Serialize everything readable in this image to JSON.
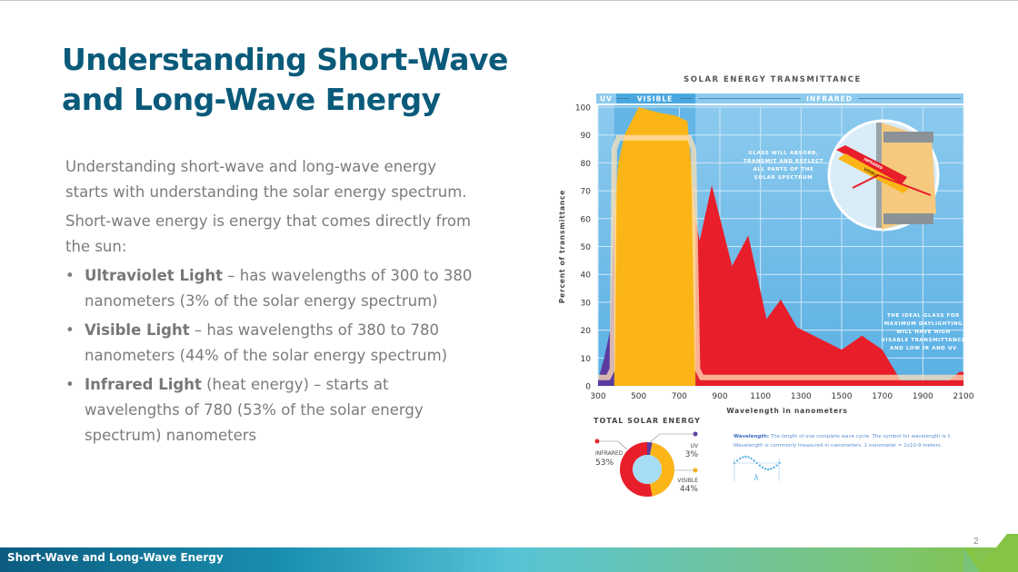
{
  "slide": {
    "title_lines": [
      "Understanding Short-Wave",
      "and Long-Wave Energy"
    ],
    "paragraphs": [
      "Understanding short-wave and long-wave energy starts with understanding the solar energy spectrum.",
      "Short-wave energy is energy that comes directly from the sun:"
    ],
    "bullets": [
      {
        "bold": "Ultraviolet Light",
        "text": " – has wavelengths of 300 to 380 nanometers (3% of the solar energy spectrum)"
      },
      {
        "bold": "Visible Light",
        "text": " – has wavelengths of 380 to 780 nanometers (44% of the solar energy spectrum)"
      },
      {
        "bold": "Infrared Light",
        "text": " (heat energy) – starts at wavelengths of 780 (53% of the solar energy spectrum) nanometers"
      }
    ],
    "bullet_glyph": "•",
    "footer_title": "Short-Wave and Long-Wave Energy",
    "slide_number": "2"
  },
  "chart_data": [
    {
      "type": "area",
      "title": "SOLAR ENERGY TRANSMITTANCE",
      "xlabel": "Wavelength in nanometers",
      "ylabel": "Percent of transmittance",
      "xlim": [
        300,
        2100
      ],
      "ylim": [
        0,
        100
      ],
      "xticks": [
        300,
        500,
        700,
        900,
        1100,
        1300,
        1500,
        1700,
        1900,
        2100
      ],
      "yticks": [
        0,
        10,
        20,
        30,
        40,
        50,
        60,
        70,
        80,
        90,
        100
      ],
      "grid": true,
      "bands": [
        {
          "label": "UV",
          "from": 300,
          "to": 380
        },
        {
          "label": "VISIBLE",
          "from": 380,
          "to": 780
        },
        {
          "label": "INFRARED",
          "from": 780,
          "to": 2100
        }
      ],
      "series": [
        {
          "name": "UV",
          "color": "#5b3aa0",
          "points": [
            [
              300,
              0
            ],
            [
              300,
              2
            ],
            [
              330,
              10
            ],
            [
              360,
              20
            ],
            [
              380,
              62
            ],
            [
              380,
              0
            ]
          ]
        },
        {
          "name": "Visible",
          "color": "#fbb516",
          "points": [
            [
              380,
              0
            ],
            [
              380,
              62
            ],
            [
              400,
              80
            ],
            [
              430,
              90
            ],
            [
              500,
              100
            ],
            [
              600,
              98
            ],
            [
              680,
              97
            ],
            [
              740,
              95
            ],
            [
              780,
              60
            ],
            [
              780,
              0
            ]
          ]
        },
        {
          "name": "Infrared",
          "color": "#e81e2a",
          "points": [
            [
              780,
              0
            ],
            [
              780,
              60
            ],
            [
              800,
              52
            ],
            [
              860,
              72
            ],
            [
              960,
              43
            ],
            [
              1040,
              54
            ],
            [
              1130,
              24
            ],
            [
              1200,
              31
            ],
            [
              1280,
              21
            ],
            [
              1500,
              13
            ],
            [
              1600,
              18
            ],
            [
              1700,
              13
            ],
            [
              1790,
              2
            ],
            [
              1900,
              2
            ],
            [
              2030,
              2
            ],
            [
              2080,
              5
            ],
            [
              2100,
              5
            ],
            [
              2100,
              0
            ]
          ]
        },
        {
          "name": "Ideal glass",
          "color": "#ffe2b8",
          "points": [
            [
              300,
              3
            ],
            [
              350,
              3
            ],
            [
              370,
              6
            ],
            [
              380,
              85
            ],
            [
              400,
              89
            ],
            [
              750,
              89
            ],
            [
              770,
              85
            ],
            [
              790,
              6
            ],
            [
              810,
              3
            ],
            [
              2100,
              3
            ]
          ]
        }
      ],
      "annotations": [
        "GLASS WILL ABSORB, TRANSMIT AND REFLECT ALL PARTS OF THE SOLAR SPECTRUM",
        "THE IDEAL GLASS FOR MAXIMUM DAYLIGHTING WILL HAVE HIGH VISABLE TRANSMITTANCE AND LOW IR AND UV"
      ],
      "inset_labels": [
        "INFRARED",
        "VISIBLE"
      ]
    },
    {
      "type": "pie",
      "title": "TOTAL SOLAR ENERGY",
      "labels": [
        "UV",
        "VISIBLE",
        "INFRARED"
      ],
      "values": [
        3,
        44,
        53
      ],
      "value_labels": [
        "3%",
        "44%",
        "53%"
      ],
      "colors": [
        "#5b3aa0",
        "#fbb516",
        "#e81e2a"
      ]
    }
  ],
  "wavelength_note": {
    "term": "Wavelength:",
    "text": " The length of one complete wave cycle. The symbol for wavelength is λ",
    "text2": "Wavelength is commonly measured in nanometers. 1 nanometer = 1x10-9 meters.",
    "symbol": "λ"
  }
}
